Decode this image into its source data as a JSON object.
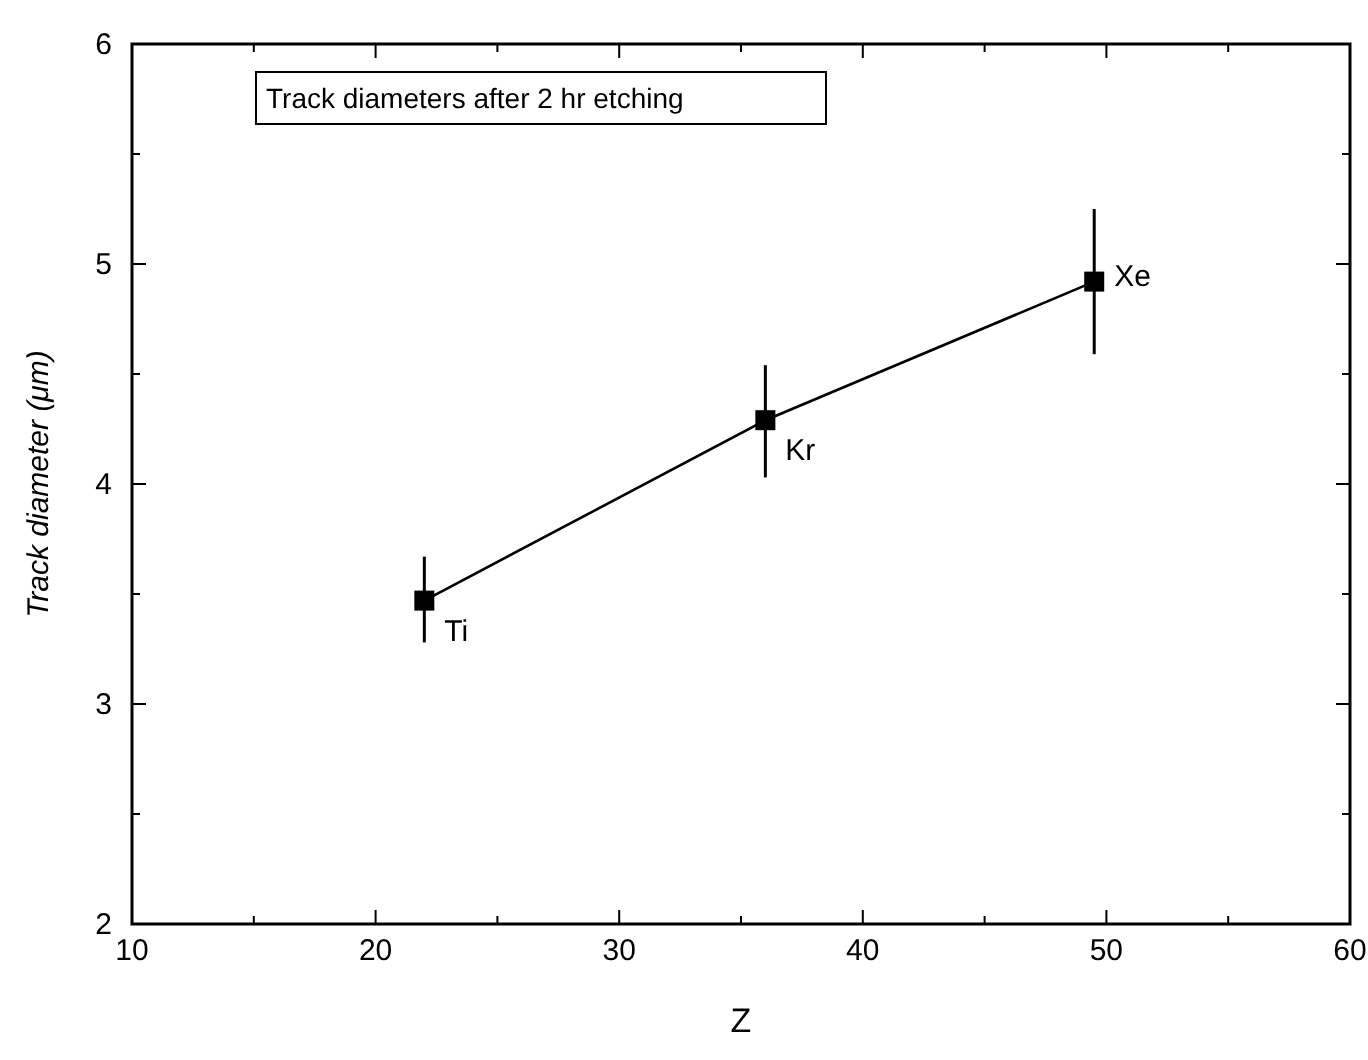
{
  "chart_data": {
    "type": "line",
    "title": "Track diameters after 2 hr etching",
    "xlabel": "Z",
    "ylabel": "Track diameter (μm)",
    "x": [
      22,
      36,
      49.5
    ],
    "series": [
      {
        "color": "#000000",
        "values": [
          3.47,
          4.29,
          4.92
        ],
        "errors": [
          [
            3.28,
            3.67
          ],
          [
            4.03,
            4.54
          ],
          [
            4.59,
            5.25
          ]
        ]
      }
    ],
    "marker": "square",
    "line_style": "solid",
    "grid": false,
    "xlim": [
      10,
      60
    ],
    "xticks": [
      10,
      {
        "value": 15,
        "label": null
      },
      20,
      {
        "value": 25,
        "label": null
      },
      30,
      {
        "value": 35,
        "label": null
      },
      40,
      {
        "value": 45,
        "label": null
      },
      50,
      {
        "value": 55,
        "label": null
      },
      60
    ],
    "ylim": [
      2,
      6
    ],
    "yticks": [
      2,
      {
        "value": 2.5,
        "label": null
      },
      3,
      {
        "value": 3.5,
        "label": null
      },
      4,
      {
        "value": 4.5,
        "label": null
      },
      5,
      {
        "value": 5.5,
        "label": null
      },
      6
    ],
    "annotations": [
      {
        "text": "Ti",
        "x": 22,
        "y": 3.47
      },
      {
        "text": "Kr",
        "x": 36,
        "y": 4.29
      },
      {
        "text": "Xe",
        "x": 49.5,
        "y": 4.92
      }
    ]
  }
}
